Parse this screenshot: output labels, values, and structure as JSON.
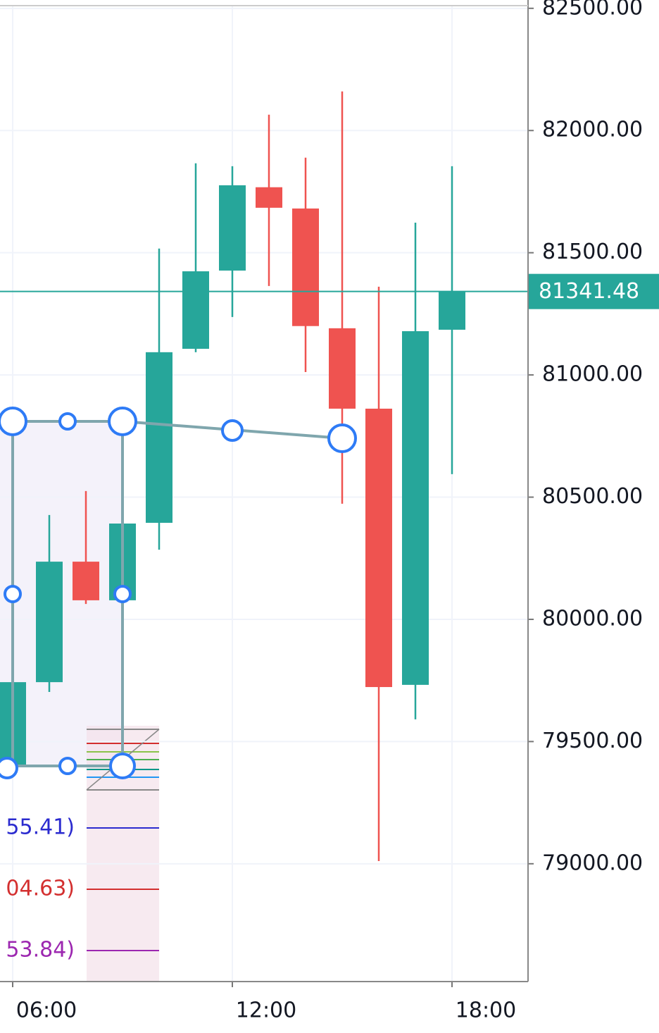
{
  "chart_data": {
    "type": "candlestick",
    "x": [
      "06:00",
      null,
      null,
      null,
      null,
      null,
      "12:00",
      null,
      null,
      null,
      null,
      null,
      "18:00"
    ],
    "open": [
      79400,
      79743,
      80236,
      80078,
      80395,
      81107,
      81427,
      81768,
      81681,
      81191,
      80862,
      79732,
      81185
    ],
    "high": [
      79745,
      80427,
      80525,
      80392,
      81517,
      81866,
      81854,
      82065,
      81889,
      82160,
      81361,
      81623,
      81854
    ],
    "low": [
      79380,
      79703,
      80063,
      80078,
      80285,
      81093,
      81237,
      81364,
      81012,
      80473,
      79011,
      79591,
      80594
    ],
    "close": [
      79743,
      80236,
      80078,
      80392,
      81093,
      81424,
      81776,
      81684,
      81200,
      80862,
      79723,
      81179,
      81341.48
    ],
    "up_color": "#26a69a",
    "down_color": "#ef5350",
    "last_price": 81341.48,
    "ylim": [
      78518,
      82511
    ],
    "yticks": [
      {
        "value": 79000,
        "label": "79000.00"
      },
      {
        "value": 79500,
        "label": "79500.00"
      },
      {
        "value": 80000,
        "label": "80000.00"
      },
      {
        "value": 80500,
        "label": "80500.00"
      },
      {
        "value": 81000,
        "label": "81000.00"
      },
      {
        "value": 81500,
        "label": "81500.00"
      },
      {
        "value": 82000,
        "label": "82000.00"
      },
      {
        "value": 82500,
        "label": "82500.00"
      }
    ],
    "grid": true,
    "annotations": [
      {
        "text": "55.41)",
        "color": "#2b2bcf"
      },
      {
        "text": "04.63)",
        "color": "#d32f2f"
      },
      {
        "text": "53.84)",
        "color": "#9c27b0"
      }
    ]
  }
}
